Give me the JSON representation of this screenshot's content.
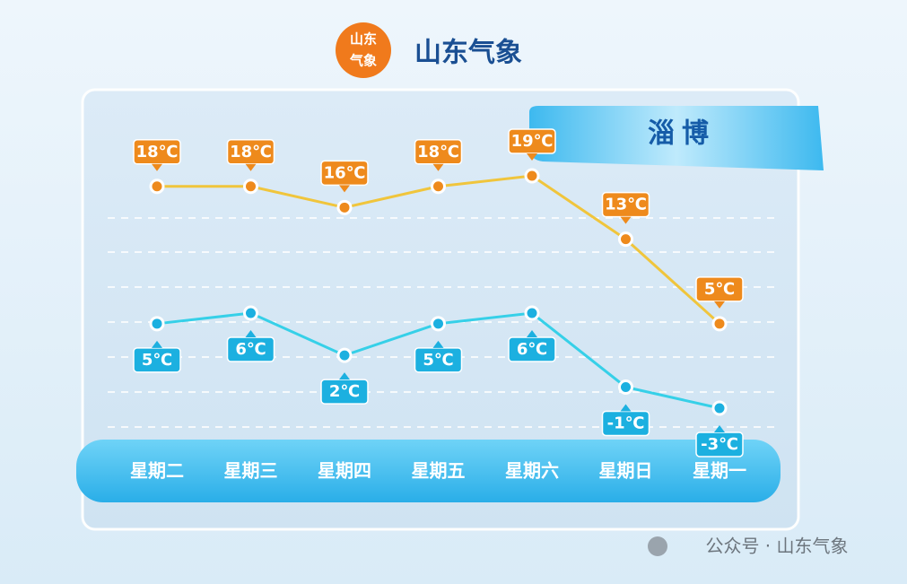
{
  "header": {
    "logo_lines": [
      "山东",
      "气象"
    ]
  },
  "chart_data": {
    "type": "line",
    "title": "山东气象",
    "subtitle": "淄博",
    "categories": [
      "星期二",
      "星期三",
      "星期四",
      "星期五",
      "星期六",
      "星期日",
      "星期一"
    ],
    "series": [
      {
        "color": "#f0c53c",
        "label_color": "#ee8a1c",
        "values": [
          18,
          18,
          16,
          18,
          19,
          13,
          5
        ],
        "value_labels": [
          "18℃",
          "18℃",
          "16℃",
          "18℃",
          "19℃",
          "13℃",
          "5℃"
        ]
      },
      {
        "color": "#36d0e8",
        "label_color": "#1cb0e0",
        "values": [
          5,
          6,
          2,
          5,
          6,
          -1,
          -3
        ],
        "value_labels": [
          "5℃",
          "6℃",
          "2℃",
          "5℃",
          "6℃",
          "-1℃",
          "-3℃"
        ]
      }
    ]
  },
  "footer": {
    "watermark": "公众号 · 山东气象"
  }
}
